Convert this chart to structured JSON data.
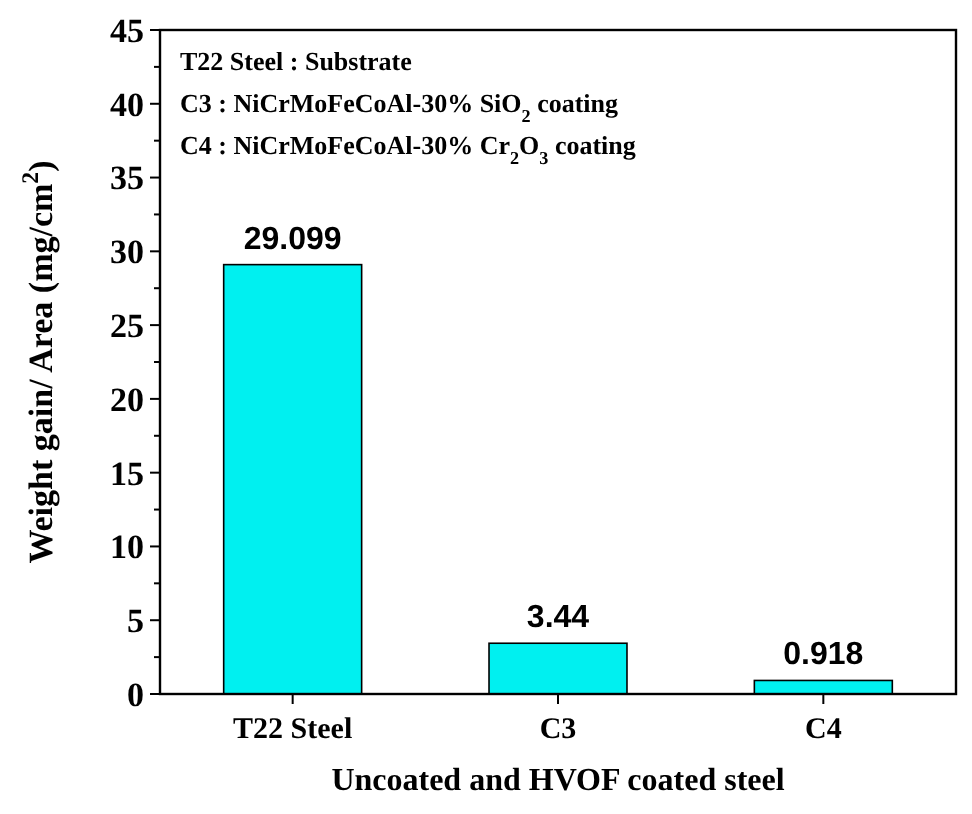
{
  "chart_data": {
    "type": "bar",
    "xlabel": "Uncoated and HVOF coated steel",
    "ylabel": "Weight gain/ Area (mg/cm$^{2}$)",
    "categories": [
      "T22 Steel",
      "C3",
      "C4"
    ],
    "values": [
      29.099,
      3.44,
      0.918
    ],
    "color": "#00f0f0",
    "ylim": [
      0,
      45
    ],
    "yticks": [
      0,
      5,
      10,
      15,
      20,
      25,
      30,
      35,
      40,
      45
    ],
    "data_labels": true,
    "grid": false,
    "annotations": [
      "T22 Steel : Substrate",
      "C3 : NiCrMoFeCoAl-30% SiO$_{2}$ coating",
      "C4 : NiCrMoFeCoAl-30% Cr$_{2}$O$_{3}$ coating"
    ]
  }
}
